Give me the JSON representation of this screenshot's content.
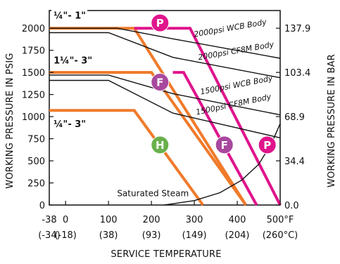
{
  "chart_data": {
    "type": "line",
    "title": "",
    "xlabel": "SERVICE TEMPERATURE",
    "ylabel_left": "WORKING PRESSURE IN PSIG",
    "ylabel_right": "WORKING PRESSURE IN BAR",
    "xlim": [
      -38,
      500
    ],
    "ylim": [
      0,
      2200
    ],
    "x_ticks": [
      {
        "value": -38,
        "label": "-38",
        "sub": "(-34)"
      },
      {
        "value": 0,
        "label": "0",
        "sub": "(-18)"
      },
      {
        "value": 100,
        "label": "100",
        "sub": "(38)"
      },
      {
        "value": 200,
        "label": "200",
        "sub": "(93)"
      },
      {
        "value": 300,
        "label": "300",
        "sub": "(149)"
      },
      {
        "value": 400,
        "label": "400",
        "sub": "(204)"
      },
      {
        "value": 500,
        "label": "500°F",
        "sub": "(260°C)"
      }
    ],
    "y_ticks_left": [
      {
        "value": 0,
        "label": "0"
      },
      {
        "value": 250,
        "label": "250"
      },
      {
        "value": 500,
        "label": "500"
      },
      {
        "value": 750,
        "label": "750"
      },
      {
        "value": 1000,
        "label": "1000"
      },
      {
        "value": 1250,
        "label": "1250"
      },
      {
        "value": 1500,
        "label": "1500"
      },
      {
        "value": 1750,
        "label": "1750"
      },
      {
        "value": 2000,
        "label": "2000"
      }
    ],
    "y_ticks_right": [
      {
        "value": 0,
        "label": "0.0"
      },
      {
        "value": 500,
        "label": "34.4"
      },
      {
        "value": 1000,
        "label": "68.9"
      },
      {
        "value": 1500,
        "label": "103.4"
      },
      {
        "value": 2000,
        "label": "137.9"
      }
    ],
    "series": [
      {
        "kind": "orange",
        "color": "#f07a2a",
        "points": [
          [
            -38,
            2000
          ],
          [
            160,
            2000
          ],
          [
            420,
            0
          ]
        ]
      },
      {
        "kind": "orange",
        "color": "#f07a2a",
        "points": [
          [
            -38,
            1500
          ],
          [
            200,
            1500
          ],
          [
            420,
            0
          ]
        ]
      },
      {
        "kind": "orange",
        "color": "#f07a2a",
        "points": [
          [
            -38,
            1070
          ],
          [
            160,
            1070
          ],
          [
            320,
            0
          ]
        ]
      },
      {
        "kind": "magenta",
        "color": "#e0148c",
        "points": [
          [
            160,
            2000
          ],
          [
            290,
            2000
          ],
          [
            500,
            0
          ]
        ]
      },
      {
        "kind": "magenta",
        "color": "#e0148c",
        "points": [
          [
            250,
            1500
          ],
          [
            275,
            1500
          ],
          [
            445,
            0
          ]
        ]
      },
      {
        "kind": "body",
        "color": "#111111",
        "points": [
          [
            -38,
            2000
          ],
          [
            120,
            2000
          ],
          [
            250,
            1880
          ],
          [
            500,
            1660
          ]
        ]
      },
      {
        "kind": "body",
        "color": "#111111",
        "points": [
          [
            -38,
            1950
          ],
          [
            100,
            1950
          ],
          [
            250,
            1670
          ],
          [
            500,
            1440
          ]
        ]
      },
      {
        "kind": "body",
        "color": "#111111",
        "points": [
          [
            -38,
            1470
          ],
          [
            100,
            1470
          ],
          [
            250,
            1260
          ],
          [
            500,
            1020
          ]
        ]
      },
      {
        "kind": "body",
        "color": "#111111",
        "points": [
          [
            -38,
            1410
          ],
          [
            100,
            1410
          ],
          [
            250,
            1040
          ],
          [
            500,
            760
          ]
        ]
      },
      {
        "kind": "steam",
        "color": "#111111",
        "points": [
          [
            230,
            0
          ],
          [
            300,
            50
          ],
          [
            360,
            140
          ],
          [
            410,
            280
          ],
          [
            450,
            460
          ],
          [
            480,
            700
          ],
          [
            500,
            920
          ]
        ]
      }
    ],
    "annotations": [
      {
        "text": "¼\"- 1\"",
        "x": -28,
        "y": 2110,
        "style": "range"
      },
      {
        "text": "1¼\"- 3\"",
        "x": -28,
        "y": 1600,
        "style": "range"
      },
      {
        "text": "¼\"- 3\"",
        "x": -28,
        "y": 880,
        "style": "range"
      },
      {
        "text": "2000psi WCB Body",
        "x": 300,
        "y": 1900,
        "style": "body",
        "angle": -10
      },
      {
        "text": "2000psi CF8M Body",
        "x": 310,
        "y": 1640,
        "style": "body",
        "angle": -10
      },
      {
        "text": "1500psi WCB Body",
        "x": 315,
        "y": 1250,
        "style": "body",
        "angle": -11
      },
      {
        "text": "1500psi CF8M Body",
        "x": 305,
        "y": 1020,
        "style": "body",
        "angle": -12
      },
      {
        "text": "Saturated Steam",
        "x": 120,
        "y": 100,
        "style": "steam"
      }
    ],
    "markers": [
      {
        "letter": "P",
        "color": "#e0148c",
        "x": 220,
        "y": 2060
      },
      {
        "letter": "F",
        "color": "#a8489e",
        "x": 220,
        "y": 1390
      },
      {
        "letter": "H",
        "color": "#6ab04c",
        "x": 220,
        "y": 680
      },
      {
        "letter": "F",
        "color": "#a8489e",
        "x": 370,
        "y": 680
      },
      {
        "letter": "P",
        "color": "#e0148c",
        "x": 470,
        "y": 680
      }
    ]
  }
}
